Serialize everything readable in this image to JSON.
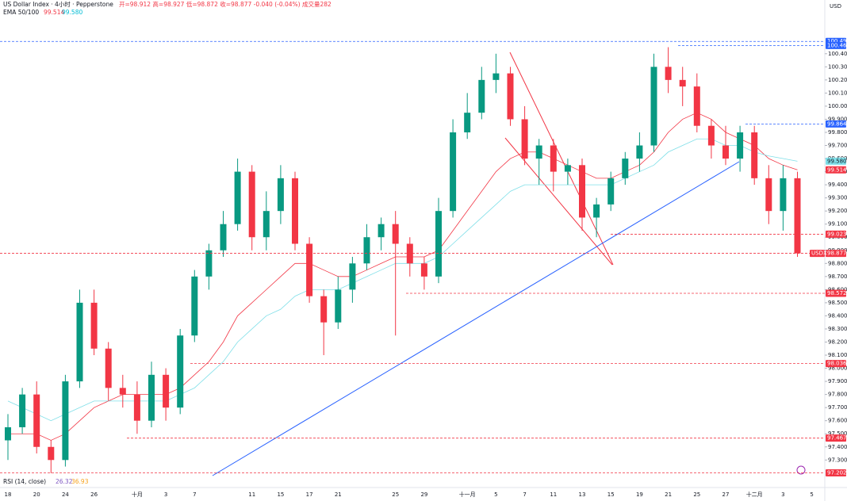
{
  "chart_data": {
    "type": "candlestick",
    "header": {
      "title": "US Dollar Index · 4小时 · Pepperstone",
      "quote": "开=98.912 高=98.927 低=98.872 收=98.877 -0.040 (-0.04%) 成交量282",
      "currency": "USD"
    },
    "ema": {
      "label": "EMA 50/100",
      "value_labels": [
        "99.514",
        "99.580"
      ],
      "lines": [
        {
          "color": "#f23645",
          "values": [
            97.5,
            97.5,
            97.5,
            97.45,
            97.5,
            97.6,
            97.7,
            97.75,
            97.8,
            97.8,
            97.8,
            97.8,
            97.85,
            97.95,
            98.05,
            98.2,
            98.4,
            98.5,
            98.6,
            98.7,
            98.8,
            98.8,
            98.75,
            98.7,
            98.7,
            98.75,
            98.8,
            98.85,
            98.85,
            98.85,
            98.9,
            99.05,
            99.2,
            99.35,
            99.5,
            99.6,
            99.65,
            99.65,
            99.6,
            99.55,
            99.5,
            99.45,
            99.45,
            99.5,
            99.55,
            99.65,
            99.8,
            99.9,
            99.95,
            99.9,
            99.8,
            99.75,
            99.7,
            99.6,
            99.55,
            99.514,
            null
          ]
        },
        {
          "color": "#7fdfe8",
          "values": [
            97.75,
            97.7,
            97.65,
            97.6,
            97.65,
            97.7,
            97.75,
            97.75,
            97.75,
            97.75,
            97.75,
            97.75,
            97.8,
            97.85,
            97.95,
            98.05,
            98.2,
            98.3,
            98.4,
            98.45,
            98.55,
            98.6,
            98.6,
            98.6,
            98.65,
            98.7,
            98.75,
            98.8,
            98.8,
            98.8,
            98.85,
            98.95,
            99.05,
            99.15,
            99.25,
            99.35,
            99.4,
            99.4,
            99.4,
            99.4,
            99.4,
            99.4,
            99.4,
            99.45,
            99.5,
            99.55,
            99.65,
            99.7,
            99.75,
            99.75,
            99.7,
            99.7,
            99.65,
            99.62,
            99.6,
            99.58,
            null
          ]
        }
      ]
    },
    "rsi": {
      "label": "RSI (14, close)",
      "value_labels": [
        "26.32",
        "36.93"
      ]
    },
    "categories": [
      "18",
      null,
      "20",
      null,
      "24",
      null,
      "26",
      null,
      null,
      "十月",
      null,
      "3",
      null,
      "7",
      null,
      null,
      null,
      "11",
      null,
      "15",
      null,
      "17",
      null,
      "21",
      null,
      null,
      null,
      "25",
      null,
      "29",
      null,
      null,
      "十一月",
      null,
      "5",
      null,
      "7",
      null,
      "11",
      null,
      "13",
      null,
      "15",
      null,
      "19",
      null,
      "21",
      null,
      "25",
      null,
      "27",
      null,
      "十二月",
      null,
      "3",
      null,
      "5"
    ],
    "open": [
      97.45,
      97.55,
      97.8,
      97.4,
      97.3,
      97.9,
      98.5,
      98.15,
      97.85,
      97.8,
      97.6,
      97.95,
      97.7,
      98.25,
      98.7,
      98.9,
      99.1,
      99.5,
      99.0,
      99.2,
      99.45,
      98.95,
      98.55,
      98.35,
      98.6,
      98.8,
      99.0,
      99.1,
      98.95,
      98.8,
      98.7,
      99.2,
      99.8,
      99.95,
      100.2,
      100.25,
      99.9,
      99.6,
      99.7,
      99.5,
      99.55,
      99.15,
      99.25,
      99.45,
      99.6,
      99.7,
      100.3,
      100.2,
      100.15,
      99.85,
      99.7,
      99.6,
      99.8,
      99.45,
      99.2,
      99.45,
      null
    ],
    "high": [
      97.65,
      97.85,
      97.9,
      97.45,
      97.95,
      98.6,
      98.6,
      98.2,
      97.95,
      97.9,
      98.05,
      98.0,
      98.3,
      98.75,
      98.95,
      99.2,
      99.6,
      99.55,
      99.35,
      99.55,
      99.5,
      99.0,
      98.6,
      98.7,
      98.85,
      99.1,
      99.15,
      99.2,
      99.0,
      98.85,
      99.3,
      99.9,
      100.1,
      100.3,
      100.4,
      100.3,
      100.0,
      99.75,
      99.75,
      99.6,
      99.6,
      99.3,
      99.5,
      99.65,
      99.8,
      100.4,
      100.45,
      100.3,
      100.25,
      99.9,
      99.85,
      99.85,
      99.85,
      99.55,
      99.55,
      99.5,
      null
    ],
    "low": [
      97.3,
      97.5,
      97.35,
      97.2,
      97.25,
      97.85,
      98.1,
      97.75,
      97.7,
      97.5,
      97.55,
      97.6,
      97.65,
      98.2,
      98.6,
      98.85,
      99.05,
      98.9,
      98.9,
      99.1,
      98.9,
      98.5,
      98.1,
      98.3,
      98.5,
      98.75,
      98.9,
      98.25,
      98.7,
      98.6,
      98.65,
      99.15,
      99.75,
      99.9,
      100.1,
      99.85,
      99.55,
      99.4,
      99.35,
      99.4,
      99.05,
      99.0,
      99.2,
      99.4,
      99.5,
      99.65,
      100.1,
      100.0,
      99.8,
      99.6,
      99.55,
      99.5,
      99.4,
      99.1,
      99.05,
      98.85,
      null
    ],
    "close": [
      97.55,
      97.8,
      97.4,
      97.3,
      97.9,
      98.5,
      98.15,
      97.85,
      97.8,
      97.6,
      97.95,
      97.7,
      98.25,
      98.7,
      98.9,
      99.1,
      99.5,
      99.0,
      99.2,
      99.45,
      98.95,
      98.55,
      98.35,
      98.6,
      98.8,
      99.0,
      99.1,
      98.95,
      98.8,
      98.7,
      99.2,
      99.8,
      99.95,
      100.2,
      100.25,
      99.9,
      99.6,
      99.7,
      99.5,
      99.55,
      99.15,
      99.25,
      99.45,
      99.6,
      99.7,
      100.3,
      100.2,
      100.15,
      99.85,
      99.7,
      99.6,
      99.8,
      99.45,
      99.2,
      99.45,
      98.877,
      null
    ],
    "up_color": "#089981",
    "down_color": "#f23645",
    "ylim": [
      97.09,
      100.81
    ],
    "yticks": [
      {
        "value": 97.3,
        "label": "97.300"
      },
      {
        "value": 97.4,
        "label": "97.400"
      },
      {
        "value": 97.5,
        "label": "97.500"
      },
      {
        "value": 97.6,
        "label": "97.600"
      },
      {
        "value": 97.7,
        "label": "97.700"
      },
      {
        "value": 97.8,
        "label": "97.800"
      },
      {
        "value": 97.9,
        "label": "97.900"
      },
      {
        "value": 98.0,
        "label": "98.000"
      },
      {
        "value": 98.1,
        "label": "98.100"
      },
      {
        "value": 98.2,
        "label": "98.200"
      },
      {
        "value": 98.3,
        "label": "98.300"
      },
      {
        "value": 98.4,
        "label": "98.400"
      },
      {
        "value": 98.5,
        "label": "98.500"
      },
      {
        "value": 98.6,
        "label": "98.600"
      },
      {
        "value": 98.7,
        "label": "98.700"
      },
      {
        "value": 98.8,
        "label": "98.800"
      },
      {
        "value": 98.9,
        "label": "98.900"
      },
      {
        "value": 99.0,
        "label": "99.000"
      },
      {
        "value": 99.1,
        "label": "99.100"
      },
      {
        "value": 99.2,
        "label": "99.200"
      },
      {
        "value": 99.3,
        "label": "99.300"
      },
      {
        "value": 99.4,
        "label": "99.400"
      },
      {
        "value": 99.5,
        "label": "99.500"
      },
      {
        "value": 99.6,
        "label": "99.600"
      },
      {
        "value": 99.7,
        "label": "99.700"
      },
      {
        "value": 99.8,
        "label": "99.800"
      },
      {
        "value": 99.9,
        "label": "99.900"
      },
      {
        "value": 100.0,
        "label": "100.000"
      },
      {
        "value": 100.1,
        "label": "100.100"
      },
      {
        "value": 100.2,
        "label": "100.200"
      },
      {
        "value": 100.3,
        "label": "100.300"
      },
      {
        "value": 100.4,
        "label": "100.400"
      }
    ],
    "levels": [
      {
        "value": 100.494,
        "color": "#2962ff"
      },
      {
        "value": 100.463,
        "color": "#2962ff"
      },
      {
        "value": 99.864,
        "color": "#2962ff"
      },
      {
        "value": {
          "value": 99.58,
          "label": "99.580"
        },
        "color": "#7fdfe8"
      },
      {
        "value": 99.514,
        "color": "#f23645"
      },
      {
        "value": 99.023,
        "color": "#f23645"
      },
      {
        "value": 98.877,
        "color": "#f23645",
        "tag": "USDX"
      },
      {
        "value": 98.572,
        "color": "#f23645"
      },
      {
        "value": 98.036,
        "color": "#f23645"
      },
      {
        "value": 97.467,
        "color": "#f23645"
      },
      {
        "value": 97.202,
        "color": "#f23645"
      }
    ]
  }
}
